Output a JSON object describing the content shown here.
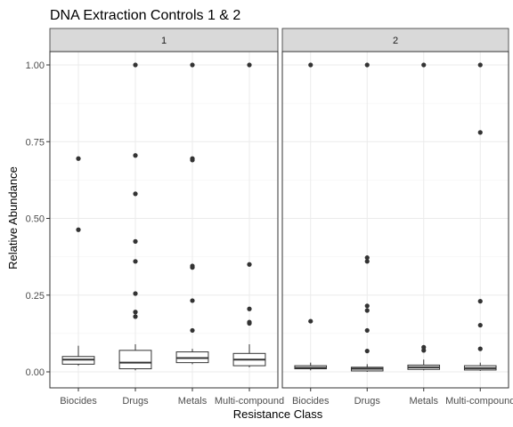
{
  "chart_data": {
    "type": "boxplot",
    "title": "DNA Extraction Controls 1 & 2",
    "xlabel": "Resistance Class",
    "ylabel": "Relative Abundance",
    "ylim": [
      -0.04,
      1.05
    ],
    "yticks": [
      0.0,
      0.25,
      0.5,
      0.75,
      1.0
    ],
    "ytick_labels": [
      "0.00",
      "0.25",
      "0.50",
      "0.75",
      "1.00"
    ],
    "categories": [
      "Biocides",
      "Drugs",
      "Metals",
      "Multi-compound"
    ],
    "grid": true,
    "panels": [
      {
        "label": "1",
        "boxes": [
          {
            "category": "Biocides",
            "whisker_low": 0.02,
            "q1": 0.025,
            "median": 0.04,
            "q3": 0.05,
            "whisker_high": 0.085,
            "outliers": [
              0.463,
              0.695
            ]
          },
          {
            "category": "Drugs",
            "whisker_low": 0.005,
            "q1": 0.01,
            "median": 0.03,
            "q3": 0.07,
            "whisker_high": 0.09,
            "outliers": [
              0.18,
              0.195,
              0.255,
              0.36,
              0.425,
              0.58,
              0.705,
              1.0
            ]
          },
          {
            "category": "Metals",
            "whisker_low": 0.025,
            "q1": 0.03,
            "median": 0.045,
            "q3": 0.065,
            "whisker_high": 0.075,
            "outliers": [
              0.135,
              0.232,
              0.34,
              0.345,
              0.69,
              0.695,
              1.0
            ]
          },
          {
            "category": "Multi-compound",
            "whisker_low": 0.015,
            "q1": 0.02,
            "median": 0.04,
            "q3": 0.06,
            "whisker_high": 0.09,
            "outliers": [
              0.158,
              0.162,
              0.205,
              0.35,
              1.0
            ]
          }
        ]
      },
      {
        "label": "2",
        "boxes": [
          {
            "category": "Biocides",
            "whisker_low": 0.005,
            "q1": 0.01,
            "median": 0.013,
            "q3": 0.02,
            "whisker_high": 0.03,
            "outliers": [
              0.165,
              1.0
            ]
          },
          {
            "category": "Drugs",
            "whisker_low": 0.0,
            "q1": 0.003,
            "median": 0.01,
            "q3": 0.015,
            "whisker_high": 0.025,
            "outliers": [
              0.068,
              0.135,
              0.2,
              0.215,
              0.36,
              0.372,
              1.0
            ]
          },
          {
            "category": "Metals",
            "whisker_low": 0.005,
            "q1": 0.008,
            "median": 0.015,
            "q3": 0.022,
            "whisker_high": 0.04,
            "outliers": [
              0.07,
              0.08,
              1.0
            ]
          },
          {
            "category": "Multi-compound",
            "whisker_low": 0.003,
            "q1": 0.006,
            "median": 0.012,
            "q3": 0.02,
            "whisker_high": 0.03,
            "outliers": [
              0.075,
              0.152,
              0.23,
              0.78,
              1.0
            ]
          }
        ]
      }
    ]
  }
}
